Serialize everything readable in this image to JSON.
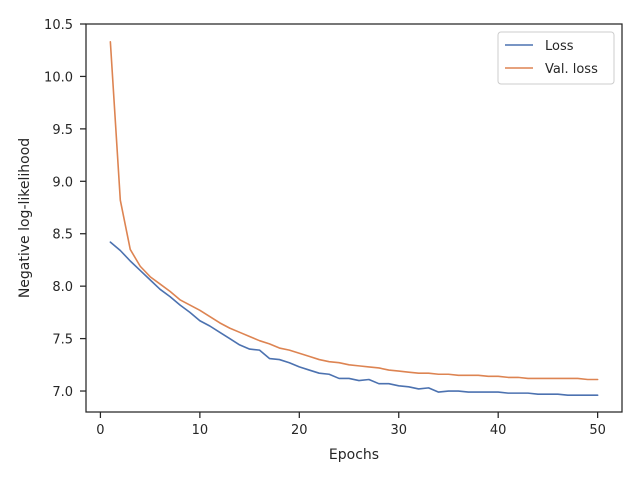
{
  "chart_data": {
    "type": "line",
    "xlabel": "Epochs",
    "ylabel": "Negative log-likelihood",
    "xlim": [
      -1.45,
      52.45
    ],
    "ylim": [
      6.8,
      10.5
    ],
    "x_ticks": [
      0,
      10,
      20,
      30,
      40,
      50
    ],
    "x_tick_labels": [
      "0",
      "10",
      "20",
      "30",
      "40",
      "50"
    ],
    "y_ticks": [
      7.0,
      7.5,
      8.0,
      8.5,
      9.0,
      9.5,
      10.0,
      10.5
    ],
    "y_tick_labels": [
      "7.0",
      "7.5",
      "8.0",
      "8.5",
      "9.0",
      "9.5",
      "10.0",
      "10.5"
    ],
    "grid": false,
    "legend_position": "top-right",
    "x": [
      1,
      2,
      3,
      4,
      5,
      6,
      7,
      8,
      9,
      10,
      11,
      12,
      13,
      14,
      15,
      16,
      17,
      18,
      19,
      20,
      21,
      22,
      23,
      24,
      25,
      26,
      27,
      28,
      29,
      30,
      31,
      32,
      33,
      34,
      35,
      36,
      37,
      38,
      39,
      40,
      41,
      42,
      43,
      44,
      45,
      46,
      47,
      48,
      49,
      50
    ],
    "series": [
      {
        "name": "Loss",
        "color": "#4c72b0",
        "values": [
          8.42,
          8.34,
          8.24,
          8.15,
          8.06,
          7.97,
          7.9,
          7.82,
          7.75,
          7.67,
          7.62,
          7.56,
          7.5,
          7.44,
          7.4,
          7.39,
          7.31,
          7.3,
          7.27,
          7.23,
          7.2,
          7.17,
          7.16,
          7.12,
          7.12,
          7.1,
          7.11,
          7.07,
          7.07,
          7.05,
          7.04,
          7.02,
          7.03,
          6.99,
          7.0,
          7.0,
          6.99,
          6.99,
          6.99,
          6.99,
          6.98,
          6.98,
          6.98,
          6.97,
          6.97,
          6.97,
          6.96,
          6.96,
          6.96,
          6.96
        ]
      },
      {
        "name": "Val. loss",
        "color": "#dd8452",
        "values": [
          10.33,
          8.82,
          8.35,
          8.19,
          8.09,
          8.02,
          7.95,
          7.87,
          7.82,
          7.77,
          7.71,
          7.65,
          7.6,
          7.56,
          7.52,
          7.48,
          7.45,
          7.41,
          7.39,
          7.36,
          7.33,
          7.3,
          7.28,
          7.27,
          7.25,
          7.24,
          7.23,
          7.22,
          7.2,
          7.19,
          7.18,
          7.17,
          7.17,
          7.16,
          7.16,
          7.15,
          7.15,
          7.15,
          7.14,
          7.14,
          7.13,
          7.13,
          7.12,
          7.12,
          7.12,
          7.12,
          7.12,
          7.12,
          7.11,
          7.11
        ]
      }
    ]
  }
}
